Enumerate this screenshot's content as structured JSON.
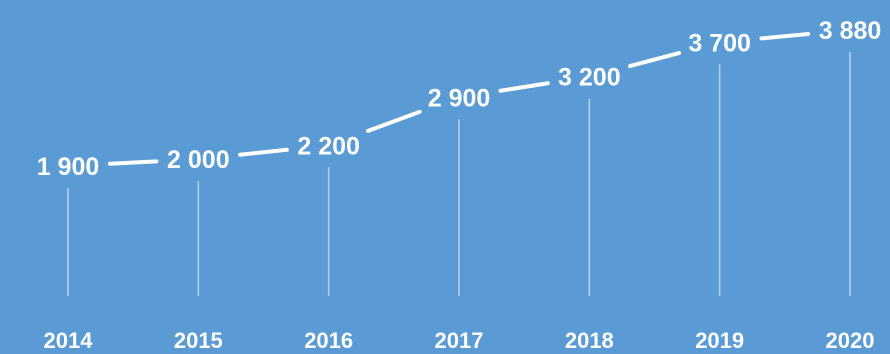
{
  "colors": {
    "background": "#5b9bd5",
    "foreground": "#ffffff"
  },
  "chart_data": {
    "type": "line",
    "title": "",
    "xlabel": "",
    "ylabel": "",
    "categories": [
      "2014",
      "2015",
      "2016",
      "2017",
      "2018",
      "2019",
      "2020"
    ],
    "values": [
      1900,
      2000,
      2200,
      2900,
      3200,
      3700,
      3880
    ],
    "data_labels": [
      "1 900",
      "2 000",
      "2 200",
      "2 900",
      "3 200",
      "3 700",
      "3 880"
    ],
    "ylim": [
      1000,
      4000
    ],
    "grid": false,
    "legend": "none"
  }
}
